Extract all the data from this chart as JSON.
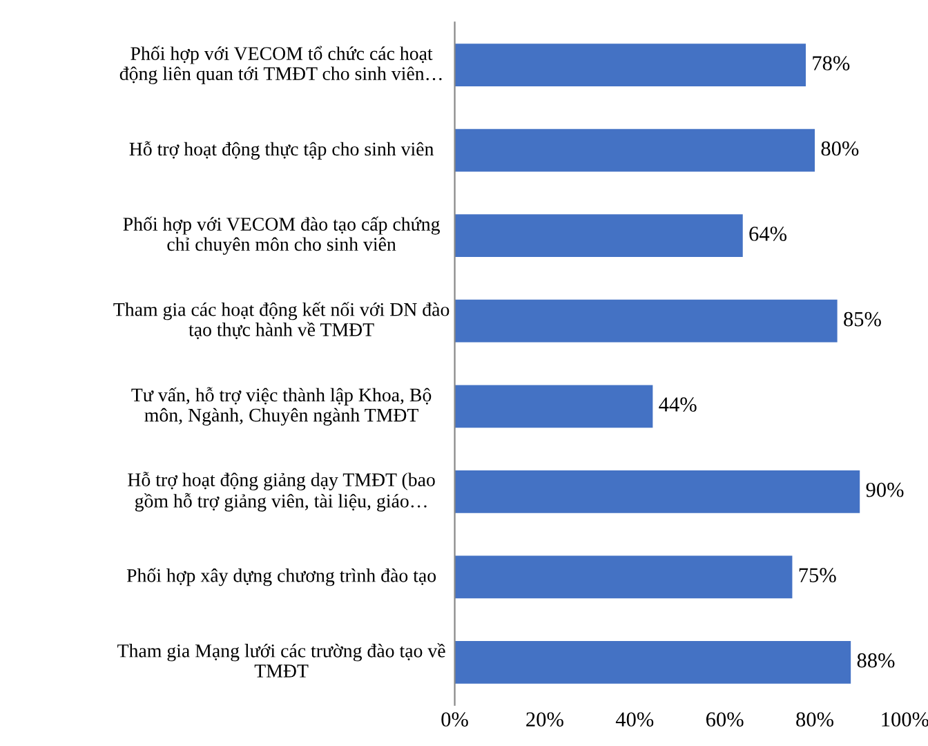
{
  "chart_data": {
    "type": "bar",
    "orientation": "horizontal",
    "categories": [
      "Phối hợp với VECOM tổ chức các hoạt\nđộng liên quan tới TMĐT cho sinh viên…",
      "Hỗ trợ hoạt động thực tập cho sinh viên",
      "Phối hợp với VECOM đào tạo cấp chứng\nchỉ chuyên môn cho sinh viên",
      "Tham gia các hoạt động kết nối với DN đào\ntạo thực hành về TMĐT",
      "Tư vấn, hỗ trợ việc thành lập Khoa, Bộ\nmôn, Ngành, Chuyên ngành TMĐT",
      "Hỗ trợ hoạt động giảng dạy TMĐT (bao\ngồm hỗ trợ giảng viên, tài liệu, giáo…",
      "Phối hợp xây dựng chương trình đào tạo",
      "Tham gia Mạng lưới các trường đào tạo về\nTMĐT"
    ],
    "values": [
      78,
      80,
      64,
      85,
      44,
      90,
      75,
      88
    ],
    "value_labels": [
      "78%",
      "80%",
      "64%",
      "85%",
      "44%",
      "90%",
      "75%",
      "88%"
    ],
    "color": "#4472c4",
    "xlim": [
      0,
      100
    ],
    "xticks": [
      {
        "value": 0,
        "label": "0%"
      },
      {
        "value": 20,
        "label": "20%"
      },
      {
        "value": 40,
        "label": "40%"
      },
      {
        "value": 60,
        "label": "60%"
      },
      {
        "value": 80,
        "label": "80%"
      },
      {
        "value": 100,
        "label": "100%"
      }
    ],
    "grid": false
  }
}
